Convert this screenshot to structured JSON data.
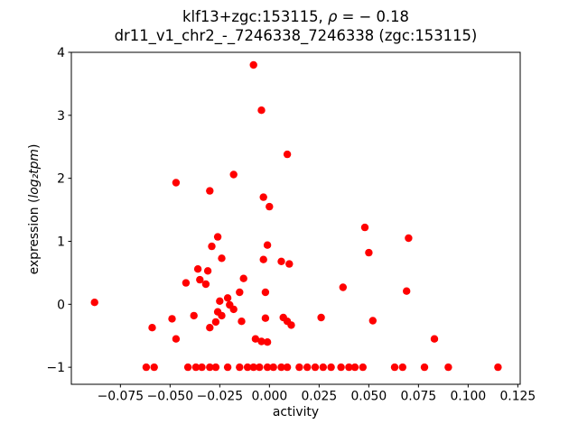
{
  "chart_data": {
    "type": "scatter",
    "title": {
      "line1_prefix": "klf13+zgc:153115, ",
      "line1_rho": "ρ",
      "line1_suffix": " = − 0.18",
      "line2": "dr11_v1_chr2_-_7246338_7246338 (zgc:153115)"
    },
    "xlabel": "activity",
    "ylabel_prefix": "expression (",
    "ylabel_math": "log₂tpm",
    "ylabel_suffix": ")",
    "xlim": [
      -0.0997,
      0.1262
    ],
    "ylim": [
      -1.27,
      4.0
    ],
    "xticks": [
      -0.075,
      -0.05,
      -0.025,
      0.0,
      0.025,
      0.05,
      0.075,
      0.1,
      0.125
    ],
    "xtick_labels": [
      "−0.075",
      "−0.050",
      "−0.025",
      "0.000",
      "0.025",
      "0.050",
      "0.075",
      "0.100",
      "0.125"
    ],
    "yticks": [
      -1,
      0,
      1,
      2,
      3,
      4
    ],
    "ytick_labels": [
      "−1",
      "0",
      "1",
      "2",
      "3",
      "4"
    ],
    "grid": false,
    "legend": null,
    "marker_color": "#ff0000",
    "marker_radius_px": 4.2,
    "frame_color": "#000000",
    "points": [
      [
        -0.008,
        3.8
      ],
      [
        -0.004,
        3.08
      ],
      [
        0.009,
        2.38
      ],
      [
        -0.018,
        2.06
      ],
      [
        -0.047,
        1.93
      ],
      [
        -0.03,
        1.8
      ],
      [
        -0.003,
        1.7
      ],
      [
        0.0,
        1.55
      ],
      [
        0.048,
        1.22
      ],
      [
        -0.026,
        1.07
      ],
      [
        0.07,
        1.05
      ],
      [
        -0.029,
        0.92
      ],
      [
        -0.001,
        0.94
      ],
      [
        0.05,
        0.82
      ],
      [
        -0.024,
        0.73
      ],
      [
        -0.003,
        0.71
      ],
      [
        0.006,
        0.68
      ],
      [
        0.01,
        0.64
      ],
      [
        -0.088,
        0.03
      ],
      [
        -0.042,
        0.34
      ],
      [
        -0.036,
        0.56
      ],
      [
        -0.035,
        0.39
      ],
      [
        -0.032,
        0.32
      ],
      [
        -0.031,
        0.53
      ],
      [
        -0.021,
        0.1
      ],
      [
        -0.025,
        0.05
      ],
      [
        -0.02,
        -0.01
      ],
      [
        -0.018,
        -0.08
      ],
      [
        -0.026,
        -0.12
      ],
      [
        -0.024,
        -0.18
      ],
      [
        -0.015,
        0.19
      ],
      [
        -0.002,
        0.19
      ],
      [
        -0.013,
        0.41
      ],
      [
        0.037,
        0.27
      ],
      [
        0.069,
        0.21
      ],
      [
        -0.059,
        -0.37
      ],
      [
        -0.049,
        -0.23
      ],
      [
        -0.047,
        -0.55
      ],
      [
        -0.038,
        -0.18
      ],
      [
        -0.03,
        -0.37
      ],
      [
        -0.027,
        -0.28
      ],
      [
        -0.014,
        -0.27
      ],
      [
        -0.002,
        -0.22
      ],
      [
        0.007,
        -0.21
      ],
      [
        0.009,
        -0.27
      ],
      [
        0.011,
        -0.33
      ],
      [
        -0.007,
        -0.55
      ],
      [
        -0.004,
        -0.59
      ],
      [
        -0.001,
        -0.6
      ],
      [
        0.026,
        -0.21
      ],
      [
        0.052,
        -0.26
      ],
      [
        0.083,
        -0.55
      ],
      [
        -0.062,
        -1.0
      ],
      [
        -0.058,
        -1.0
      ],
      [
        -0.041,
        -1.0
      ],
      [
        -0.037,
        -1.0
      ],
      [
        -0.034,
        -1.0
      ],
      [
        -0.03,
        -1.0
      ],
      [
        -0.027,
        -1.0
      ],
      [
        -0.021,
        -1.0
      ],
      [
        -0.015,
        -1.0
      ],
      [
        -0.011,
        -1.0
      ],
      [
        -0.008,
        -1.0
      ],
      [
        -0.005,
        -1.0
      ],
      [
        -0.001,
        -1.0
      ],
      [
        0.002,
        -1.0
      ],
      [
        0.006,
        -1.0
      ],
      [
        0.009,
        -1.0
      ],
      [
        0.015,
        -1.0
      ],
      [
        0.019,
        -1.0
      ],
      [
        0.023,
        -1.0
      ],
      [
        0.027,
        -1.0
      ],
      [
        0.031,
        -1.0
      ],
      [
        0.036,
        -1.0
      ],
      [
        0.04,
        -1.0
      ],
      [
        0.043,
        -1.0
      ],
      [
        0.047,
        -1.0
      ],
      [
        0.063,
        -1.0
      ],
      [
        0.067,
        -1.0
      ],
      [
        0.078,
        -1.0
      ],
      [
        0.09,
        -1.0
      ],
      [
        0.115,
        -1.0
      ]
    ]
  }
}
